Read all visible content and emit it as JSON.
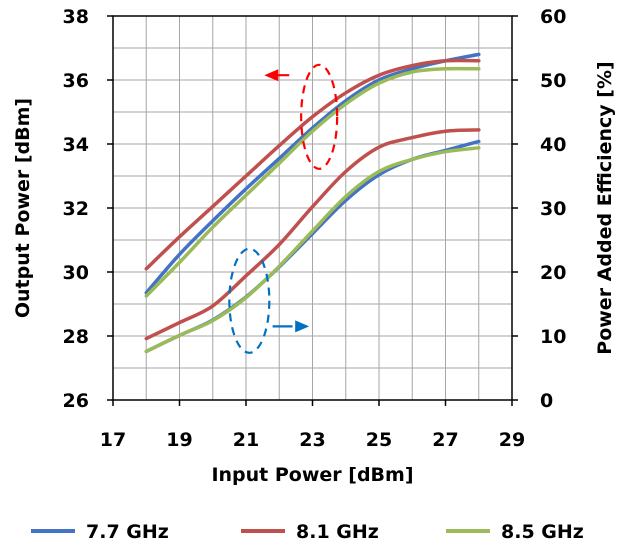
{
  "chart_data": {
    "type": "line",
    "title": "",
    "xlabel": "Input Power [dBm]",
    "ylabel": "Output Power [dBm]",
    "y2label": "Power Added Efficiency [%]",
    "xlim": [
      17,
      29
    ],
    "ylim": [
      26,
      38
    ],
    "y2lim": [
      0,
      60
    ],
    "xticks": [
      17,
      19,
      21,
      23,
      25,
      27,
      29
    ],
    "yticks": [
      26,
      28,
      30,
      32,
      34,
      36,
      38
    ],
    "y2ticks": [
      0,
      10,
      20,
      30,
      40,
      50,
      60
    ],
    "grid": true,
    "legend_position": "bottom",
    "colors": {
      "7.7 GHz": "#4472c4",
      "8.1 GHz": "#c0504d",
      "8.5 GHz": "#9bbb59",
      "pout_marker": "#ff0000",
      "pae_marker": "#0070c0"
    },
    "series": [
      {
        "name": "7.7 GHz",
        "axis": "left",
        "metric": "Output Power",
        "x": [
          18,
          19,
          20,
          21,
          22,
          23,
          24,
          25,
          26,
          27,
          28
        ],
        "y": [
          29.35,
          30.55,
          31.6,
          32.6,
          33.55,
          34.5,
          35.35,
          36.0,
          36.35,
          36.6,
          36.8
        ]
      },
      {
        "name": "8.1 GHz",
        "axis": "left",
        "metric": "Output Power",
        "x": [
          18,
          19,
          20,
          21,
          22,
          23,
          24,
          25,
          26,
          27,
          28
        ],
        "y": [
          30.1,
          31.1,
          32.05,
          33.0,
          33.95,
          34.85,
          35.6,
          36.15,
          36.45,
          36.6,
          36.6
        ]
      },
      {
        "name": "8.5 GHz",
        "axis": "left",
        "metric": "Output Power",
        "x": [
          18,
          19,
          20,
          21,
          22,
          23,
          24,
          25,
          26,
          27,
          28
        ],
        "y": [
          29.25,
          30.3,
          31.4,
          32.4,
          33.4,
          34.4,
          35.25,
          35.9,
          36.25,
          36.35,
          36.35
        ]
      },
      {
        "name": "7.7 GHz",
        "axis": "right",
        "metric": "Power Added Efficiency",
        "x": [
          18,
          19,
          20,
          21,
          22,
          23,
          24,
          25,
          26,
          27,
          28
        ],
        "y": [
          7.6,
          10.1,
          12.5,
          16.1,
          20.8,
          26.0,
          31.2,
          35.2,
          37.6,
          39.0,
          40.4
        ]
      },
      {
        "name": "8.1 GHz",
        "axis": "right",
        "metric": "Power Added Efficiency",
        "x": [
          18,
          19,
          20,
          21,
          22,
          23,
          24,
          25,
          26,
          27,
          28
        ],
        "y": [
          9.6,
          12.1,
          14.7,
          19.4,
          24.3,
          30.2,
          35.7,
          39.5,
          41.0,
          42.0,
          42.2
        ]
      },
      {
        "name": "8.5 GHz",
        "axis": "right",
        "metric": "Power Added Efficiency",
        "x": [
          18,
          19,
          20,
          21,
          22,
          23,
          24,
          25,
          26,
          27,
          28
        ],
        "y": [
          7.6,
          10.1,
          12.4,
          16.0,
          20.9,
          26.4,
          31.8,
          35.7,
          37.6,
          38.8,
          39.4
        ]
      }
    ]
  }
}
